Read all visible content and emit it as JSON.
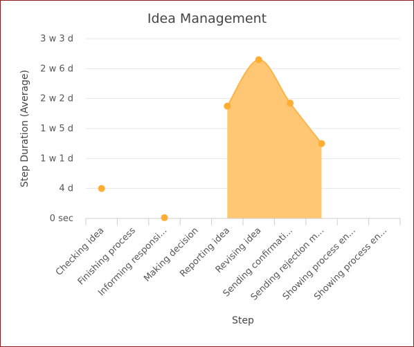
{
  "colors": {
    "area_fill": "#ffc773",
    "area_stroke": "#ffb347",
    "point": "#ffad33",
    "grid": "#e6e6e6",
    "axis": "#cccccc",
    "border": "#8b1a1a"
  },
  "chart_data": {
    "type": "area",
    "title": "Idea Management",
    "xlabel": "Step",
    "ylabel": "Step Duration (Average)",
    "categories": [
      "Checking idea",
      "Finishing process",
      "Informing responsi...",
      "Making decision",
      "Reporting idea",
      "Revising idea",
      "Sending confirmati...",
      "Sending rejection m...",
      "Showing process en...",
      "Showing process en..."
    ],
    "y_unit": "days",
    "y_ticks": [
      {
        "value": 0,
        "label": "0 sec"
      },
      {
        "value": 4,
        "label": "4 d"
      },
      {
        "value": 8,
        "label": "1 w 1 d"
      },
      {
        "value": 12,
        "label": "1 w 5 d"
      },
      {
        "value": 16,
        "label": "2 w 2 d"
      },
      {
        "value": 20,
        "label": "2 w 6 d"
      },
      {
        "value": 24,
        "label": "3 w 3 d"
      }
    ],
    "ylim": [
      0,
      24
    ],
    "grid": true,
    "legend": "none",
    "series": [
      {
        "values": [
          4.0,
          null,
          0.1,
          null,
          15.0,
          21.2,
          15.4,
          10.0,
          null,
          null
        ]
      }
    ]
  }
}
